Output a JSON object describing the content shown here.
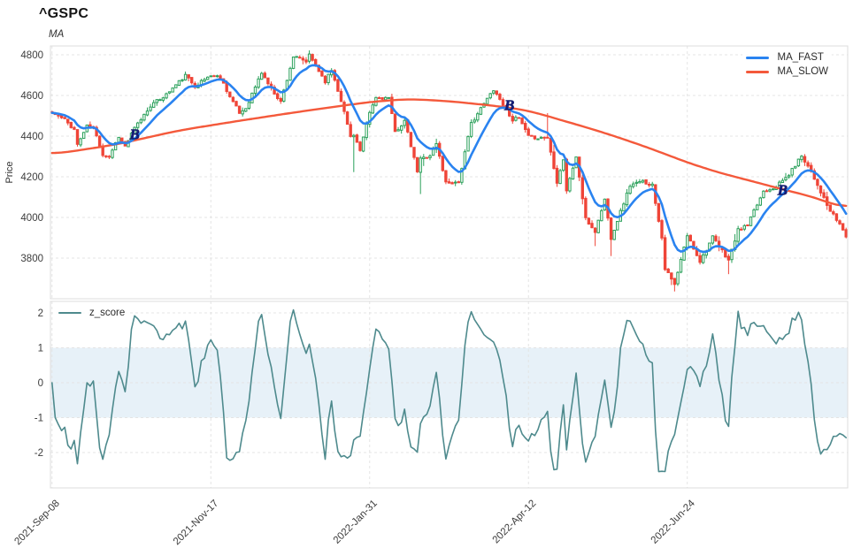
{
  "title": "^GSPC",
  "subtitle": "MA",
  "price_panel": {
    "ylabel": "Price",
    "yticks": [
      4800,
      4600,
      4400,
      4200,
      4000,
      3800
    ],
    "ylim": [
      3600,
      4843
    ],
    "legend": [
      {
        "label": "MA_FAST",
        "color": "#2a83f0"
      },
      {
        "label": "MA_SLOW",
        "color": "#f4593b"
      }
    ]
  },
  "z_panel": {
    "legend_label": "z_score",
    "yticks": [
      2,
      1,
      0,
      -1,
      -2
    ],
    "ylim": [
      -3.0,
      2.33
    ],
    "band": {
      "from": -1,
      "to": 1,
      "color": "#e7f1f8"
    },
    "line_color": "#4e8a8d"
  },
  "x_axis": {
    "tick_labels": [
      "2021-Sep-08",
      "2021-Nov-17",
      "2022-Jan-31",
      "2022-Apr-12",
      "2022-Jun-24"
    ],
    "tick_days": [
      0,
      50,
      100,
      150,
      200
    ],
    "total_days": 251
  },
  "signals": {
    "marker": "B",
    "color": "#151e7d",
    "days": [
      26,
      144,
      230
    ]
  },
  "colors": {
    "up": "#2aa05a",
    "up_fill": "#ffffff",
    "down": "#ef4538",
    "ma_fast": "#2a83f0",
    "ma_slow": "#f4593b",
    "grid": "#e4e4e4",
    "border": "#dcdcdc",
    "tick_text": "#3c3c3c",
    "marker": "#151e7d"
  },
  "chart_data": {
    "type": "candlestick",
    "title": "^GSPC",
    "subtitle": "MA",
    "xlabel": "",
    "ylabel": "Price",
    "x_tick_labels": [
      "2021-Sep-08",
      "2021-Nov-17",
      "2022-Jan-31",
      "2022-Apr-12",
      "2022-Jun-24"
    ],
    "x_tick_days": [
      0,
      50,
      100,
      150,
      200
    ],
    "n_bars": 251,
    "price_ylim": [
      3600,
      4843
    ],
    "close_anchors": [
      [
        0,
        4514
      ],
      [
        4,
        4480
      ],
      [
        7,
        4433
      ],
      [
        8,
        4358
      ],
      [
        11,
        4449
      ],
      [
        13,
        4443
      ],
      [
        16,
        4310
      ],
      [
        18,
        4300
      ],
      [
        21,
        4400
      ],
      [
        23,
        4350
      ],
      [
        26,
        4438
      ],
      [
        31,
        4550
      ],
      [
        36,
        4605
      ],
      [
        42,
        4698
      ],
      [
        45,
        4647
      ],
      [
        50,
        4700
      ],
      [
        53,
        4690
      ],
      [
        56,
        4595
      ],
      [
        59,
        4513
      ],
      [
        61,
        4538
      ],
      [
        66,
        4712
      ],
      [
        69,
        4634
      ],
      [
        72,
        4569
      ],
      [
        76,
        4791
      ],
      [
        80,
        4766
      ],
      [
        81,
        4797
      ],
      [
        86,
        4670
      ],
      [
        88,
        4726
      ],
      [
        91,
        4577
      ],
      [
        94,
        4398
      ],
      [
        95,
        4410
      ],
      [
        97,
        4327
      ],
      [
        100,
        4515
      ],
      [
        102,
        4589
      ],
      [
        106,
        4587
      ],
      [
        108,
        4419
      ],
      [
        111,
        4475
      ],
      [
        115,
        4226
      ],
      [
        116,
        4288
      ],
      [
        119,
        4306
      ],
      [
        121,
        4363
      ],
      [
        124,
        4171
      ],
      [
        128,
        4173
      ],
      [
        132,
        4463
      ],
      [
        139,
        4631
      ],
      [
        145,
        4481
      ],
      [
        147,
        4488
      ],
      [
        150,
        4397
      ],
      [
        153,
        4392
      ],
      [
        156,
        4394
      ],
      [
        159,
        4175
      ],
      [
        161,
        4287
      ],
      [
        162,
        4132
      ],
      [
        165,
        4300
      ],
      [
        168,
        3991
      ],
      [
        171,
        3930
      ],
      [
        174,
        4089
      ],
      [
        176,
        3900
      ],
      [
        182,
        4158
      ],
      [
        186,
        4177
      ],
      [
        189,
        4160
      ],
      [
        192,
        3901
      ],
      [
        193,
        3750
      ],
      [
        196,
        3667
      ],
      [
        200,
        3912
      ],
      [
        204,
        3785
      ],
      [
        208,
        3902
      ],
      [
        213,
        3790
      ],
      [
        216,
        3937
      ],
      [
        219,
        3962
      ],
      [
        224,
        4130
      ],
      [
        228,
        4152
      ],
      [
        232,
        4210
      ],
      [
        236,
        4305
      ],
      [
        239,
        4228
      ],
      [
        244,
        4058
      ],
      [
        245,
        4031
      ],
      [
        248,
        3967
      ],
      [
        250,
        3908
      ]
    ],
    "series": [
      {
        "name": "MA_FAST",
        "kind": "ema_of_close",
        "period": 10,
        "color": "#2a83f0"
      },
      {
        "name": "MA_SLOW",
        "kind": "anchored_line",
        "color": "#f4593b",
        "anchors": [
          [
            0,
            4310
          ],
          [
            20,
            4358
          ],
          [
            40,
            4428
          ],
          [
            60,
            4478
          ],
          [
            80,
            4525
          ],
          [
            100,
            4568
          ],
          [
            112,
            4583
          ],
          [
            125,
            4572
          ],
          [
            140,
            4548
          ],
          [
            150,
            4526
          ],
          [
            160,
            4480
          ],
          [
            170,
            4435
          ],
          [
            180,
            4385
          ],
          [
            190,
            4330
          ],
          [
            200,
            4270
          ],
          [
            210,
            4220
          ],
          [
            220,
            4180
          ],
          [
            230,
            4138
          ],
          [
            240,
            4100
          ],
          [
            250,
            4040
          ]
        ]
      }
    ],
    "wick_overrides": [
      [
        95,
        "low",
        4223
      ],
      [
        116,
        "low",
        4115
      ],
      [
        156,
        "high",
        4513
      ],
      [
        171,
        "low",
        3859
      ],
      [
        176,
        "low",
        3810
      ],
      [
        196,
        "low",
        3636
      ],
      [
        213,
        "low",
        3721
      ]
    ],
    "buy_signals": {
      "marker": "B",
      "days": [
        26,
        144,
        230
      ]
    },
    "z_score": {
      "name": "z_score",
      "window": 12,
      "clip": [
        -2.58,
        2.26
      ],
      "band": [
        -1,
        1
      ],
      "yticks": [
        2,
        1,
        0,
        -1,
        -2
      ]
    },
    "render_hints": {
      "noise_seed": 11,
      "close_jitter": 8,
      "wick_scale": 15
    }
  }
}
